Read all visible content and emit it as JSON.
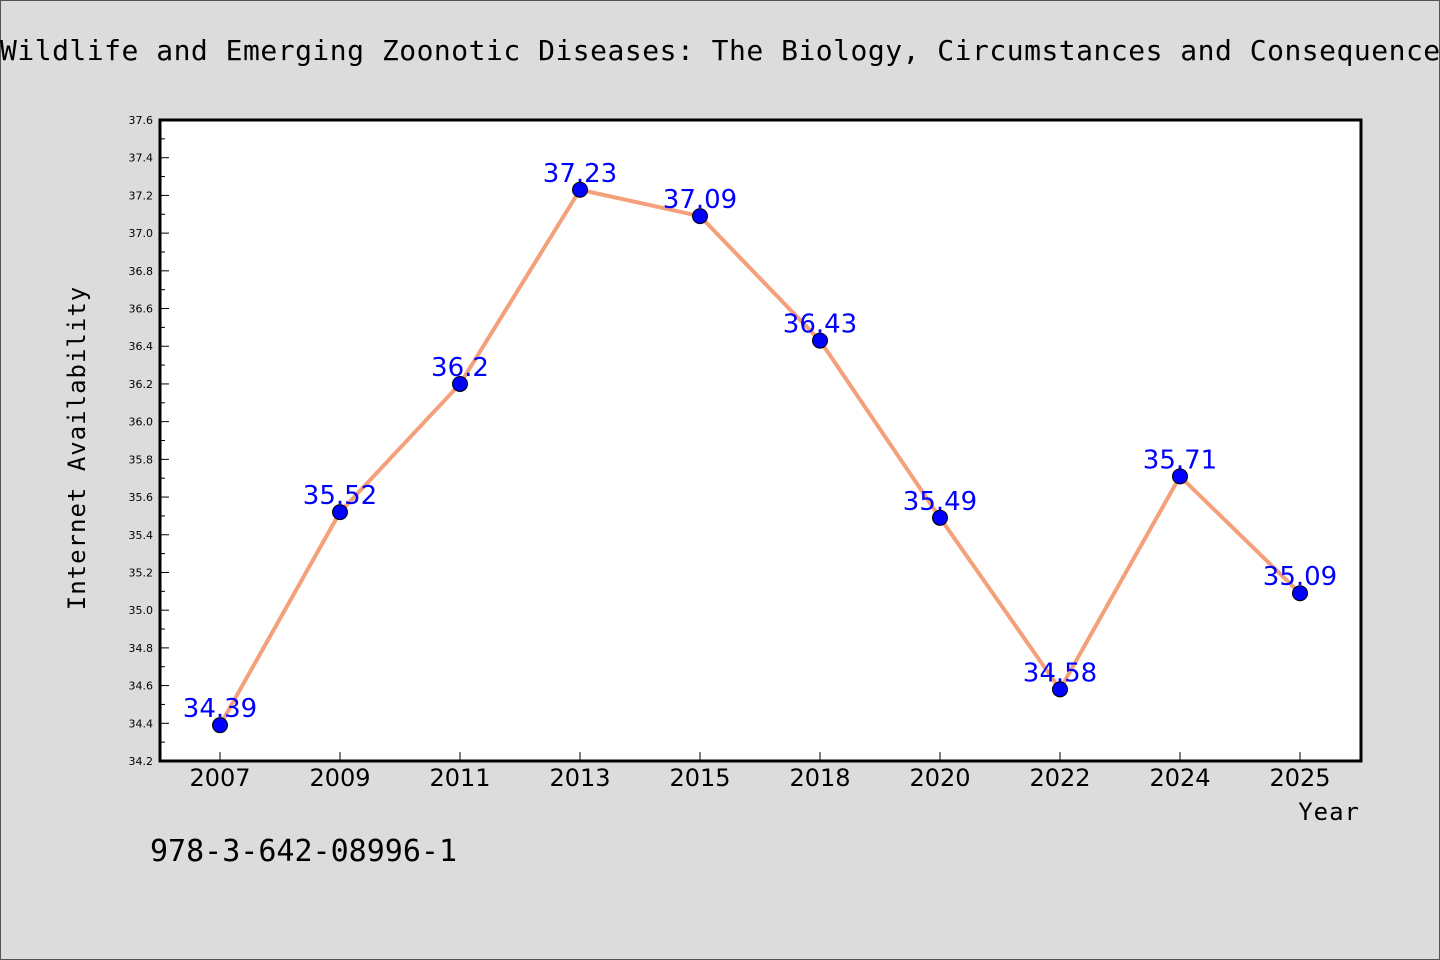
{
  "title": "Wildlife and Emerging Zoonotic Diseases: The Biology, Circumstances and Consequences",
  "isbn": "978-3-642-08996-1",
  "chart_data": {
    "type": "line",
    "title": "Wildlife and Emerging Zoonotic Diseases: The Biology, Circumstances and Consequences",
    "xlabel": "Year",
    "ylabel": "Internet Availability",
    "categories": [
      "2007",
      "2009",
      "2011",
      "2013",
      "2015",
      "2018",
      "2020",
      "2022",
      "2024",
      "2025"
    ],
    "series": [
      {
        "values": [
          34.39,
          35.52,
          36.2,
          37.23,
          37.09,
          36.43,
          35.49,
          34.58,
          35.71,
          35.09
        ],
        "data_labels": [
          "34.39",
          "35.52",
          "36.2",
          "37.23",
          "37.09",
          "36.43",
          "35.49",
          "34.58",
          "35.71",
          "35.09"
        ],
        "line_color": "#f4a07a",
        "marker_color": "#0000ff",
        "label_color": "#0000ff"
      }
    ],
    "ylim": [
      34.2,
      37.6
    ],
    "yticks": [
      "34.2",
      "34.4",
      "34.6",
      "34.8",
      "35.0",
      "35.2",
      "35.4",
      "35.6",
      "35.8",
      "36.0",
      "36.2",
      "36.4",
      "36.6",
      "36.8",
      "37.0",
      "37.2",
      "37.4",
      "37.6"
    ],
    "grid": false,
    "legend": "none"
  }
}
